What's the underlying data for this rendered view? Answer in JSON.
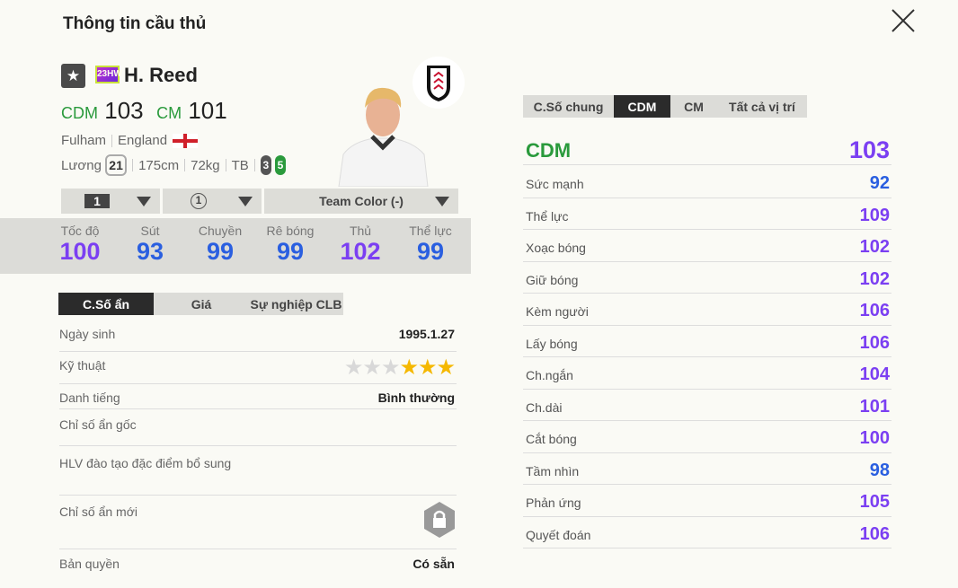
{
  "header": {
    "title": "Thông tin cầu thủ",
    "close_icon": "close-icon"
  },
  "player": {
    "season_badge": "23HW",
    "name": "H. Reed",
    "positions": [
      {
        "pos": "CDM",
        "ovr": "103"
      },
      {
        "pos": "CM",
        "ovr": "101"
      }
    ],
    "club": "Fulham",
    "nation": "England",
    "wage_label": "Lương",
    "wage": "21",
    "height": "175cm",
    "weight": "72kg",
    "body": "TB",
    "weak_foot": "3",
    "strong_foot": "5"
  },
  "selectors": {
    "level": "1",
    "enhance": "1",
    "team_color": "Team Color (-)"
  },
  "main_stats": [
    {
      "label": "Tốc độ",
      "value": "100"
    },
    {
      "label": "Sút",
      "value": "93"
    },
    {
      "label": "Chuyền",
      "value": "99"
    },
    {
      "label": "Rê bóng",
      "value": "99"
    },
    {
      "label": "Thủ",
      "value": "102"
    },
    {
      "label": "Thể lực",
      "value": "99"
    }
  ],
  "left_tabs": [
    "C.Số ẩn",
    "Giá",
    "Sự nghiệp CLB"
  ],
  "info": {
    "birth_label": "Ngày sinh",
    "birth": "1995.1.27",
    "skill_label": "Kỹ thuật",
    "skill_stars": 3,
    "skill_max": 6,
    "rep_label": "Danh tiếng",
    "rep": "Bình thường",
    "hidden_label": "Chỉ số ẩn gốc",
    "coach_label": "HLV đào tạo đặc điểm bổ sung",
    "new_hidden_label": "Chỉ số ẩn mới",
    "license_label": "Bản quyền",
    "license": "Có sẵn"
  },
  "right_tabs": [
    "C.Số chung",
    "CDM",
    "CM",
    "Tất cả vị trí"
  ],
  "right": {
    "pos": "CDM",
    "ovr": "103",
    "stats": [
      {
        "label": "Sức mạnh",
        "value": "92"
      },
      {
        "label": "Thể lực",
        "value": "109"
      },
      {
        "label": "Xoạc bóng",
        "value": "102"
      },
      {
        "label": "Giữ bóng",
        "value": "102"
      },
      {
        "label": "Kèm người",
        "value": "106"
      },
      {
        "label": "Lấy bóng",
        "value": "106"
      },
      {
        "label": "Ch.ngắn",
        "value": "104"
      },
      {
        "label": "Ch.dài",
        "value": "101"
      },
      {
        "label": "Cắt bóng",
        "value": "100"
      },
      {
        "label": "Tầm nhìn",
        "value": "98"
      },
      {
        "label": "Phản ứng",
        "value": "105"
      },
      {
        "label": "Quyết đoán",
        "value": "106"
      }
    ]
  },
  "colors": {
    "position_green": "#2a9a3c",
    "high_stat": "#7b3ff2",
    "normal_stat": "#2a5fe0",
    "star_on": "#f5b800",
    "star_off": "#d8d8d8"
  }
}
